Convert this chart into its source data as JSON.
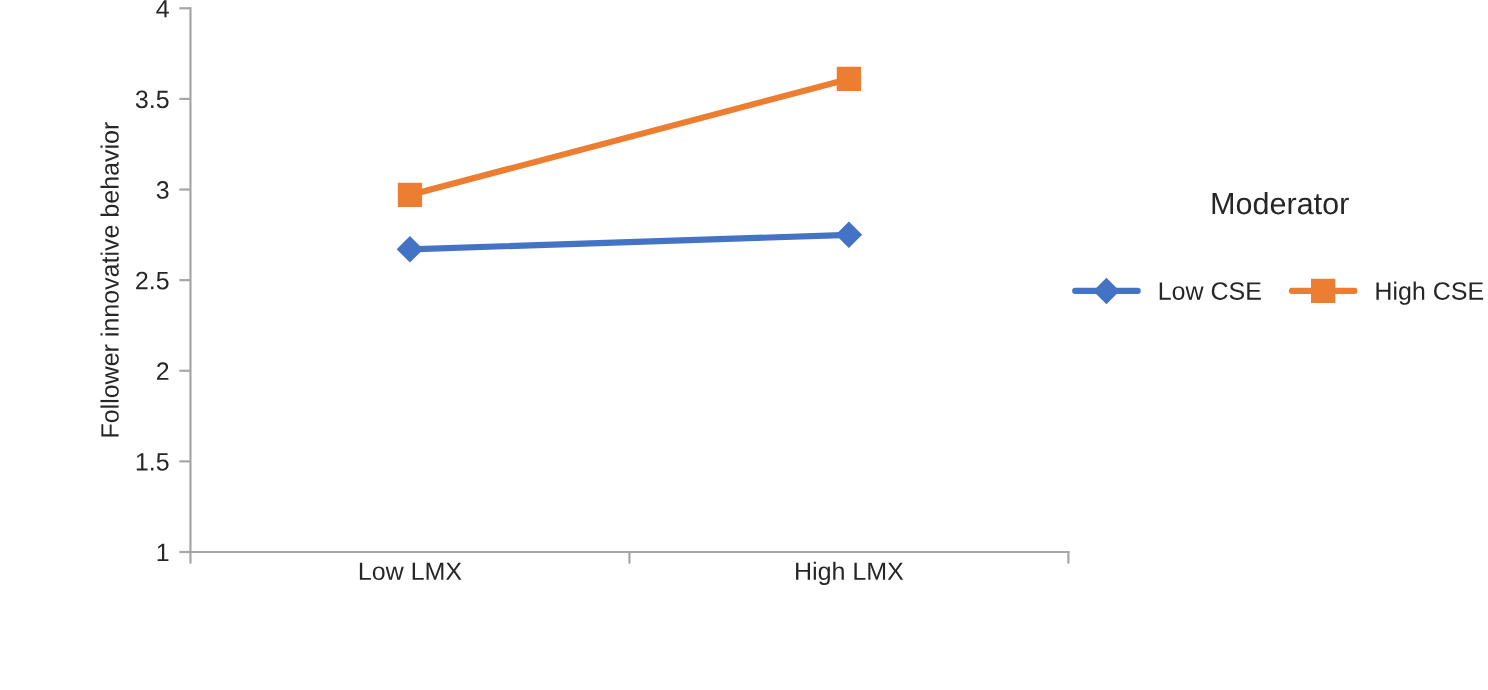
{
  "chart_data": {
    "type": "line",
    "categories": [
      "Low LMX",
      "High LMX"
    ],
    "ylabel": "Follower innovative behavior",
    "ylim": [
      1,
      4
    ],
    "yticks": [
      1,
      1.5,
      2,
      2.5,
      3,
      3.5,
      4
    ],
    "legend_title": "Moderator",
    "legend": "right",
    "grid": false,
    "series": [
      {
        "name": "Low CSE",
        "color": "#4472c4",
        "values": [
          2.67,
          2.75
        ],
        "marker": "diamond"
      },
      {
        "name": "High CSE",
        "color": "#ed7d31",
        "values": [
          2.97,
          3.61
        ],
        "marker": "square"
      }
    ]
  }
}
